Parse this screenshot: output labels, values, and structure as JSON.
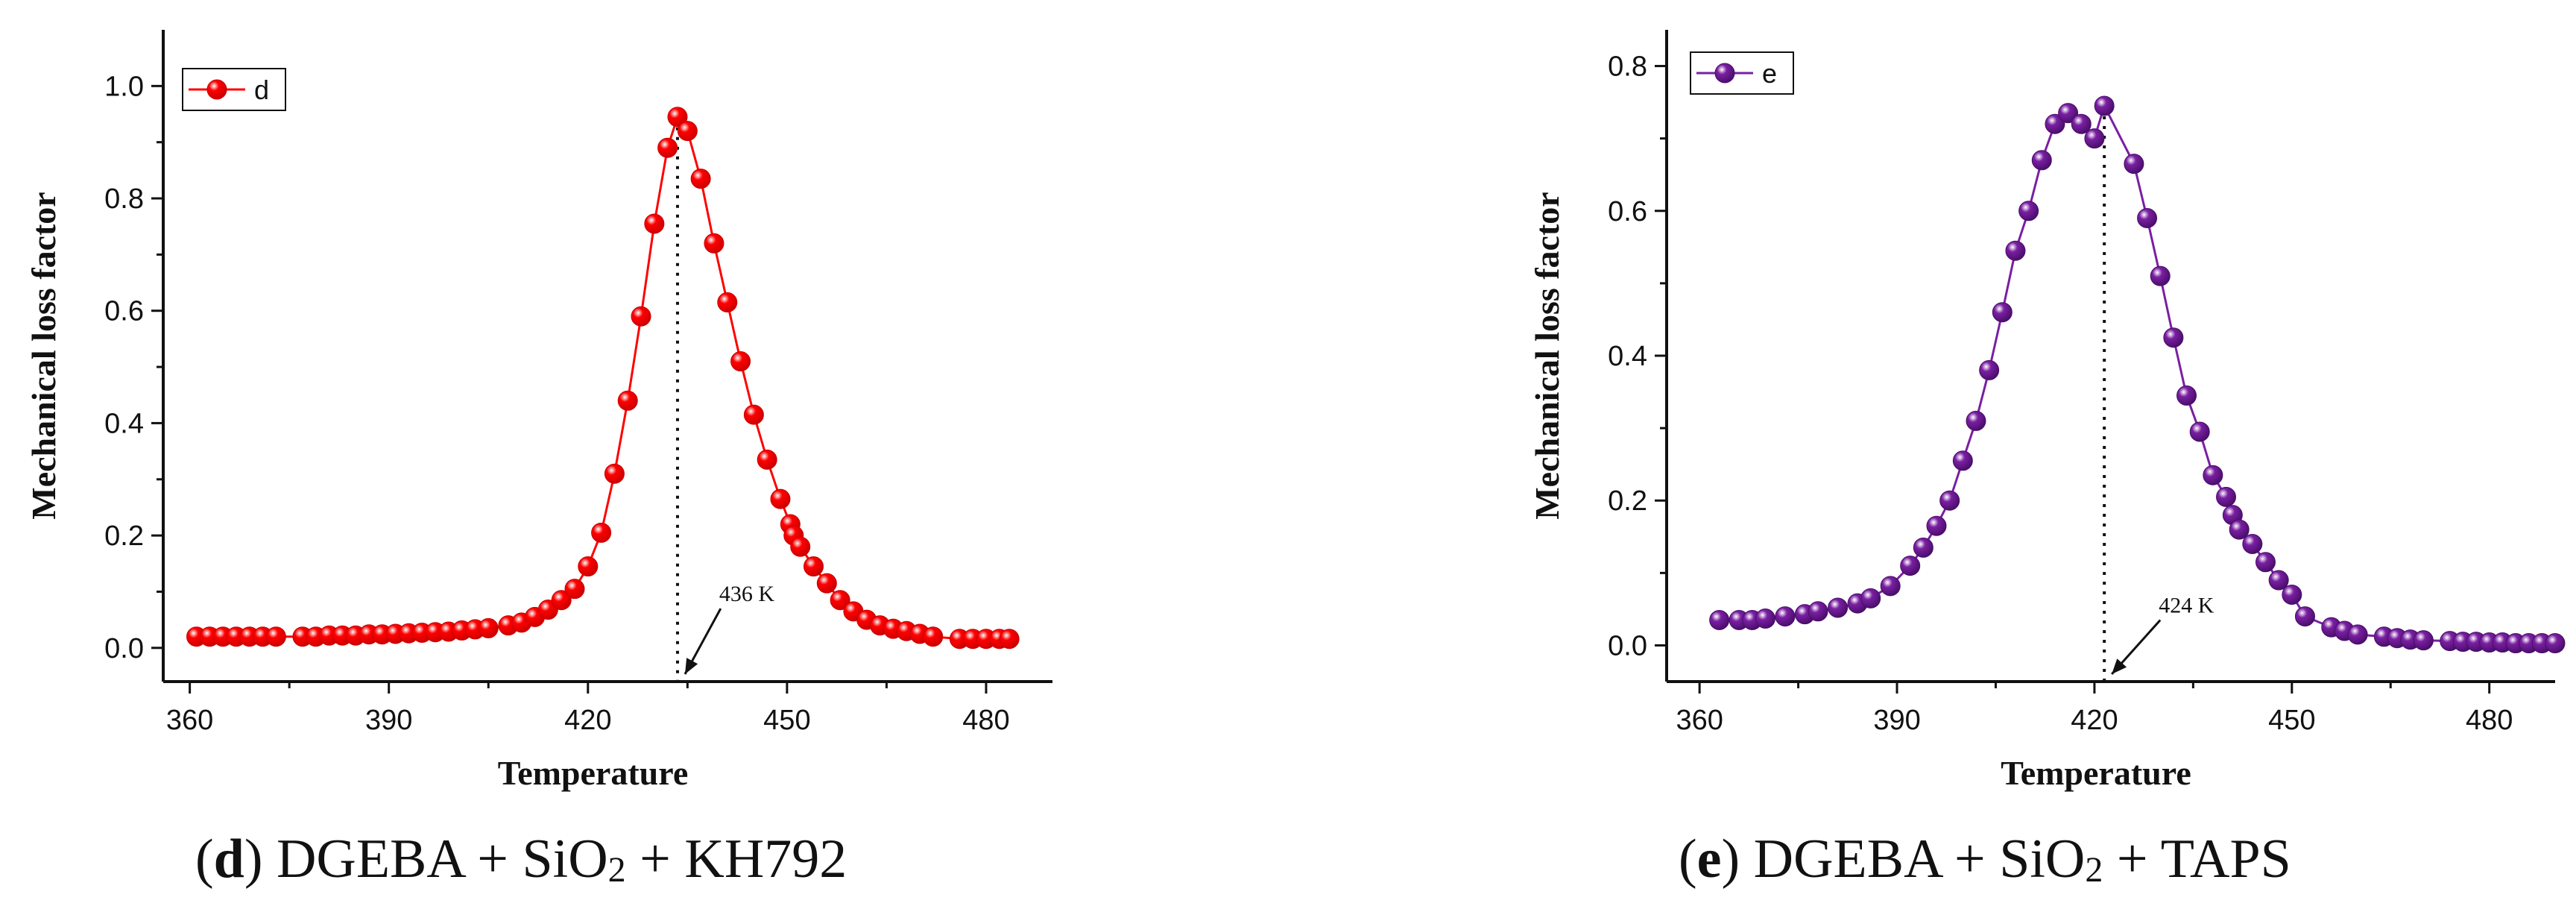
{
  "chart_data": [
    {
      "id": "d",
      "type": "line",
      "series_name": "d",
      "color": "#ff0000",
      "edge_color": "#cc0000",
      "xlabel": "Temperature",
      "ylabel": "Mechanical loss factor",
      "xlim": [
        356,
        490
      ],
      "ylim": [
        -0.06,
        1.1
      ],
      "xticks": [
        360,
        390,
        420,
        450,
        480
      ],
      "yticks": [
        0.0,
        0.2,
        0.4,
        0.6,
        0.8,
        1.0
      ],
      "ytick_labels": [
        "0.0",
        "0.2",
        "0.4",
        "0.6",
        "0.8",
        "1.0"
      ],
      "peak_x": 433.5,
      "annotation": "436 K",
      "annotation_at": [
        440,
        0.07
      ],
      "caption_letter": "d",
      "caption_formula": "DGEBA + SiO",
      "caption_sub": "2",
      "caption_rest": " + KH792",
      "x": [
        361,
        363,
        365,
        367,
        369,
        371,
        373,
        377,
        379,
        381,
        383,
        385,
        387,
        389,
        391,
        393,
        395,
        397,
        399,
        401,
        403,
        405,
        408,
        410,
        412,
        414,
        416,
        418,
        420,
        422,
        424,
        426,
        428,
        430,
        432,
        433.5,
        435,
        437,
        439,
        441,
        443,
        445,
        447,
        449,
        450.5,
        451,
        452,
        454,
        456,
        458,
        460,
        462,
        464,
        466,
        468,
        470,
        472,
        476,
        478,
        480,
        482,
        483.5
      ],
      "y": [
        0.02,
        0.02,
        0.02,
        0.02,
        0.02,
        0.02,
        0.02,
        0.02,
        0.02,
        0.022,
        0.022,
        0.022,
        0.024,
        0.024,
        0.025,
        0.026,
        0.027,
        0.028,
        0.029,
        0.031,
        0.033,
        0.035,
        0.04,
        0.045,
        0.055,
        0.068,
        0.085,
        0.105,
        0.145,
        0.205,
        0.31,
        0.44,
        0.59,
        0.755,
        0.89,
        0.945,
        0.92,
        0.835,
        0.72,
        0.615,
        0.51,
        0.415,
        0.335,
        0.265,
        0.22,
        0.2,
        0.18,
        0.145,
        0.115,
        0.085,
        0.065,
        0.05,
        0.04,
        0.034,
        0.03,
        0.025,
        0.02,
        0.016,
        0.016,
        0.016,
        0.016,
        0.016
      ]
    },
    {
      "id": "e",
      "type": "line",
      "series_name": "e",
      "color": "#7a1fa2",
      "edge_color": "#4a0e6b",
      "xlabel": "Temperature",
      "ylabel": "Mechanical loss factor",
      "xlim": [
        355,
        490
      ],
      "ylim": [
        -0.05,
        0.85
      ],
      "xticks": [
        360,
        390,
        420,
        450,
        480
      ],
      "yticks": [
        0.0,
        0.2,
        0.4,
        0.6,
        0.8
      ],
      "ytick_labels": [
        "0.0",
        "0.2",
        "0.4",
        "0.6",
        "0.8"
      ],
      "peak_x": 421.5,
      "annotation": "424 K",
      "annotation_at": [
        430,
        0.035
      ],
      "caption_letter": "e",
      "caption_formula": "DGEBA + SiO",
      "caption_sub": "2",
      "caption_rest": " + TAPS",
      "x": [
        363,
        366,
        368,
        370,
        373,
        376,
        378,
        381,
        384,
        386,
        389,
        392,
        394,
        396,
        398,
        400,
        402,
        404,
        406,
        408,
        410,
        412,
        414,
        416,
        418,
        420,
        421.5,
        426,
        428,
        430,
        432,
        434,
        436,
        438,
        440,
        441,
        442,
        444,
        446,
        448,
        450,
        452,
        456,
        458,
        460,
        464,
        466,
        468,
        470,
        474,
        476,
        478,
        480,
        482,
        484,
        486,
        488,
        490
      ],
      "y": [
        0.035,
        0.035,
        0.035,
        0.037,
        0.04,
        0.043,
        0.047,
        0.052,
        0.058,
        0.065,
        0.082,
        0.11,
        0.135,
        0.165,
        0.2,
        0.255,
        0.31,
        0.38,
        0.46,
        0.545,
        0.6,
        0.67,
        0.72,
        0.735,
        0.72,
        0.7,
        0.745,
        0.665,
        0.59,
        0.51,
        0.425,
        0.345,
        0.295,
        0.235,
        0.205,
        0.18,
        0.16,
        0.14,
        0.115,
        0.09,
        0.07,
        0.04,
        0.025,
        0.02,
        0.015,
        0.012,
        0.01,
        0.008,
        0.007,
        0.006,
        0.005,
        0.005,
        0.004,
        0.004,
        0.003,
        0.003,
        0.003,
        0.003
      ]
    }
  ]
}
